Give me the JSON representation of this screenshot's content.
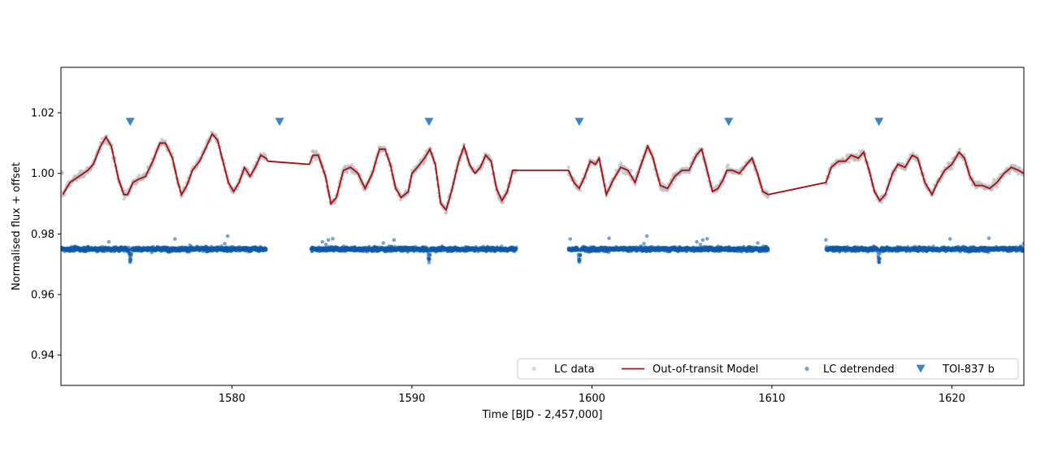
{
  "chart_data": {
    "type": "scatter",
    "xlabel": "Time [BJD - 2,457,000]",
    "ylabel": "Normalised flux + offset",
    "xlim": [
      1570.5,
      1624
    ],
    "ylim": [
      0.93,
      1.035
    ],
    "xticks": [
      1580,
      1590,
      1600,
      1610,
      1620
    ],
    "xtick_labels": [
      "1580",
      "1590",
      "1600",
      "1610",
      "1620"
    ],
    "yticks": [
      0.94,
      0.96,
      0.98,
      1.0,
      1.02
    ],
    "ytick_labels": [
      "0.94",
      "0.96",
      "0.98",
      "1.00",
      "1.02"
    ],
    "legend_position": "lower-right",
    "segments": [
      [
        1570.5,
        1581.9
      ],
      [
        1584.4,
        1595.8
      ],
      [
        1598.7,
        1609.8
      ],
      [
        1613.0,
        1624.0
      ]
    ],
    "series": [
      {
        "name": "LC data",
        "kind": "points",
        "color": "#bdbdbd",
        "description": "raw light curve, variability around 1.00"
      },
      {
        "name": "Out-of-transit Model",
        "kind": "line",
        "color": "#a50f15",
        "points": [
          [
            1570.6,
            0.993
          ],
          [
            1571.0,
            0.997
          ],
          [
            1571.5,
            0.999
          ],
          [
            1572.0,
            1.001
          ],
          [
            1572.3,
            1.003
          ],
          [
            1572.7,
            1.009
          ],
          [
            1573.0,
            1.012
          ],
          [
            1573.3,
            1.009
          ],
          [
            1573.7,
            0.998
          ],
          [
            1574.0,
            0.993
          ],
          [
            1574.2,
            0.993
          ],
          [
            1574.5,
            0.997
          ],
          [
            1574.8,
            0.998
          ],
          [
            1575.2,
            0.999
          ],
          [
            1575.6,
            1.004
          ],
          [
            1576.0,
            1.01
          ],
          [
            1576.3,
            1.01
          ],
          [
            1576.7,
            1.005
          ],
          [
            1577.0,
            0.997
          ],
          [
            1577.2,
            0.993
          ],
          [
            1577.5,
            0.996
          ],
          [
            1577.8,
            1.001
          ],
          [
            1578.2,
            1.004
          ],
          [
            1578.6,
            1.009
          ],
          [
            1578.9,
            1.013
          ],
          [
            1579.2,
            1.011
          ],
          [
            1579.5,
            1.004
          ],
          [
            1579.8,
            0.997
          ],
          [
            1580.1,
            0.994
          ],
          [
            1580.4,
            0.997
          ],
          [
            1580.7,
            1.002
          ],
          [
            1581.0,
            0.999
          ],
          [
            1581.3,
            1.002
          ],
          [
            1581.6,
            1.006
          ],
          [
            1581.9,
            1.005
          ],
          [
            1582.0,
            1.004
          ],
          [
            1584.3,
            1.003
          ],
          [
            1584.5,
            1.006
          ],
          [
            1584.8,
            1.006
          ],
          [
            1585.2,
            0.999
          ],
          [
            1585.5,
            0.99
          ],
          [
            1585.8,
            0.992
          ],
          [
            1586.2,
            1.001
          ],
          [
            1586.6,
            1.002
          ],
          [
            1587.0,
            1.0
          ],
          [
            1587.4,
            0.995
          ],
          [
            1587.8,
            1.0
          ],
          [
            1588.2,
            1.008
          ],
          [
            1588.5,
            1.008
          ],
          [
            1588.8,
            1.003
          ],
          [
            1589.1,
            0.995
          ],
          [
            1589.4,
            0.992
          ],
          [
            1589.8,
            0.994
          ],
          [
            1590.0,
            1.0
          ],
          [
            1590.3,
            1.002
          ],
          [
            1590.7,
            1.005
          ],
          [
            1591.0,
            1.008
          ],
          [
            1591.3,
            1.003
          ],
          [
            1591.6,
            0.99
          ],
          [
            1591.9,
            0.988
          ],
          [
            1592.2,
            0.994
          ],
          [
            1592.6,
            1.004
          ],
          [
            1592.9,
            1.009
          ],
          [
            1593.2,
            1.003
          ],
          [
            1593.5,
            1.0
          ],
          [
            1593.8,
            1.002
          ],
          [
            1594.1,
            1.006
          ],
          [
            1594.4,
            1.004
          ],
          [
            1594.7,
            0.995
          ],
          [
            1595.0,
            0.991
          ],
          [
            1595.3,
            0.994
          ],
          [
            1595.6,
            1.001
          ],
          [
            1595.8,
            1.001
          ],
          [
            1598.7,
            1.001
          ],
          [
            1599.0,
            0.997
          ],
          [
            1599.3,
            0.995
          ],
          [
            1599.6,
            0.999
          ],
          [
            1599.9,
            1.004
          ],
          [
            1600.2,
            1.003
          ],
          [
            1600.4,
            1.005
          ],
          [
            1600.6,
            0.999
          ],
          [
            1600.8,
            0.993
          ],
          [
            1601.2,
            0.998
          ],
          [
            1601.6,
            1.002
          ],
          [
            1602.0,
            1.001
          ],
          [
            1602.4,
            0.997
          ],
          [
            1602.8,
            1.004
          ],
          [
            1603.1,
            1.009
          ],
          [
            1603.4,
            1.005
          ],
          [
            1603.8,
            0.996
          ],
          [
            1604.2,
            0.995
          ],
          [
            1604.6,
            0.999
          ],
          [
            1605.0,
            1.001
          ],
          [
            1605.4,
            1.001
          ],
          [
            1605.8,
            1.006
          ],
          [
            1606.1,
            1.008
          ],
          [
            1606.4,
            1.001
          ],
          [
            1606.7,
            0.994
          ],
          [
            1607.0,
            0.995
          ],
          [
            1607.3,
            0.998
          ],
          [
            1607.5,
            1.001
          ],
          [
            1607.8,
            1.001
          ],
          [
            1608.2,
            1.0
          ],
          [
            1608.6,
            1.003
          ],
          [
            1608.9,
            1.005
          ],
          [
            1609.2,
            1.0
          ],
          [
            1609.5,
            0.994
          ],
          [
            1609.8,
            0.993
          ],
          [
            1613.0,
            0.997
          ],
          [
            1613.3,
            1.002
          ],
          [
            1613.7,
            1.004
          ],
          [
            1614.1,
            1.004
          ],
          [
            1614.4,
            1.006
          ],
          [
            1614.8,
            1.005
          ],
          [
            1615.1,
            1.007
          ],
          [
            1615.4,
            1.001
          ],
          [
            1615.7,
            0.994
          ],
          [
            1616.0,
            0.991
          ],
          [
            1616.3,
            0.993
          ],
          [
            1616.7,
            1.0
          ],
          [
            1617.0,
            1.003
          ],
          [
            1617.4,
            1.002
          ],
          [
            1617.8,
            1.006
          ],
          [
            1618.1,
            1.005
          ],
          [
            1618.5,
            0.997
          ],
          [
            1618.9,
            0.993
          ],
          [
            1619.2,
            0.997
          ],
          [
            1619.6,
            1.001
          ],
          [
            1620.0,
            1.003
          ],
          [
            1620.4,
            1.007
          ],
          [
            1620.7,
            1.005
          ],
          [
            1621.0,
            0.999
          ],
          [
            1621.3,
            0.996
          ],
          [
            1621.7,
            0.996
          ],
          [
            1622.1,
            0.995
          ],
          [
            1622.5,
            0.997
          ],
          [
            1622.9,
            1.0
          ],
          [
            1623.3,
            1.002
          ],
          [
            1623.7,
            1.001
          ],
          [
            1624.0,
            1.0
          ]
        ]
      },
      {
        "name": "LC detrended",
        "kind": "points",
        "color": "#0d5aa7",
        "baseline": 0.975,
        "spread": 0.004,
        "dips_at": [
          1574.35,
          1590.95,
          1599.3,
          1615.95
        ]
      },
      {
        "name": "TOI-837 b",
        "kind": "markers",
        "marker": "triangle-down",
        "color": "#3d85c6",
        "x": [
          1574.35,
          1582.65,
          1590.95,
          1599.3,
          1607.6,
          1615.95
        ],
        "y": 1.017
      }
    ]
  }
}
